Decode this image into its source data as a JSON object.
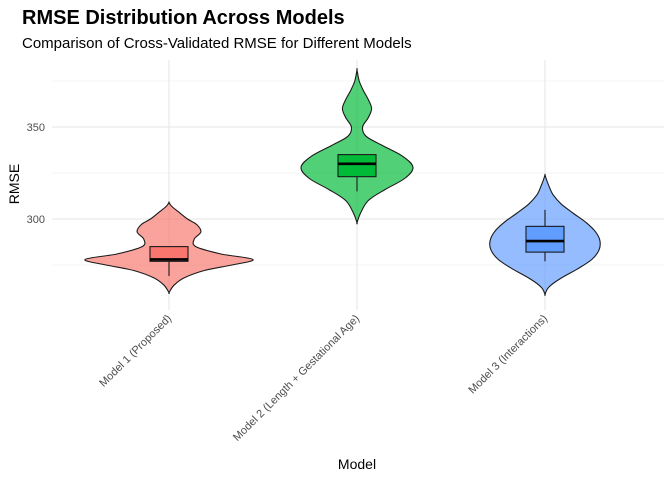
{
  "chart_data": {
    "type": "violin",
    "title": "RMSE Distribution Across Models",
    "subtitle": "Comparison of Cross-Validated RMSE for Different Models",
    "xlabel": "Model",
    "ylabel": "RMSE",
    "ylim": [
      250,
      390
    ],
    "yticks": [
      300,
      350
    ],
    "grid": true,
    "legend": "none",
    "categories": [
      "Model 1 (Proposed)",
      "Model 2 (Length + Gestational Age)",
      "Model 3 (Interactions)"
    ],
    "colors": [
      "#f8766d",
      "#00ba38",
      "#619cff"
    ],
    "series": [
      {
        "category": "Model 1 (Proposed)",
        "min": 269,
        "q1": 277,
        "median": 278,
        "q3": 285,
        "max": 285,
        "violin_profile": [
          [
            260,
            0.0
          ],
          [
            264,
            0.06
          ],
          [
            268,
            0.18
          ],
          [
            272,
            0.42
          ],
          [
            275,
            0.75
          ],
          [
            278,
            1.0
          ],
          [
            281,
            0.62
          ],
          [
            285,
            0.32
          ],
          [
            289,
            0.3
          ],
          [
            293,
            0.38
          ],
          [
            297,
            0.33
          ],
          [
            300,
            0.22
          ],
          [
            304,
            0.11
          ],
          [
            307,
            0.03
          ],
          [
            309,
            0.0
          ]
        ]
      },
      {
        "category": "Model 2 (Length + Gestational Age)",
        "min": 315,
        "q1": 323,
        "median": 330,
        "q3": 335,
        "max": 335,
        "violin_profile": [
          [
            298,
            0.0
          ],
          [
            303,
            0.06
          ],
          [
            310,
            0.2
          ],
          [
            316,
            0.5
          ],
          [
            322,
            0.85
          ],
          [
            328,
            1.0
          ],
          [
            334,
            0.82
          ],
          [
            340,
            0.45
          ],
          [
            345,
            0.16
          ],
          [
            350,
            0.1
          ],
          [
            355,
            0.2
          ],
          [
            360,
            0.26
          ],
          [
            365,
            0.2
          ],
          [
            370,
            0.11
          ],
          [
            375,
            0.04
          ],
          [
            381,
            0.0
          ]
        ]
      },
      {
        "category": "Model 3 (Interactions)",
        "min": 277,
        "q1": 282,
        "median": 288,
        "q3": 296,
        "max": 305,
        "violin_profile": [
          [
            259,
            0.0
          ],
          [
            263,
            0.07
          ],
          [
            268,
            0.3
          ],
          [
            273,
            0.6
          ],
          [
            278,
            0.85
          ],
          [
            283,
            0.98
          ],
          [
            288,
            1.0
          ],
          [
            293,
            0.92
          ],
          [
            298,
            0.75
          ],
          [
            303,
            0.52
          ],
          [
            308,
            0.3
          ],
          [
            313,
            0.15
          ],
          [
            318,
            0.07
          ],
          [
            322,
            0.02
          ],
          [
            324,
            0.0
          ]
        ]
      }
    ]
  }
}
